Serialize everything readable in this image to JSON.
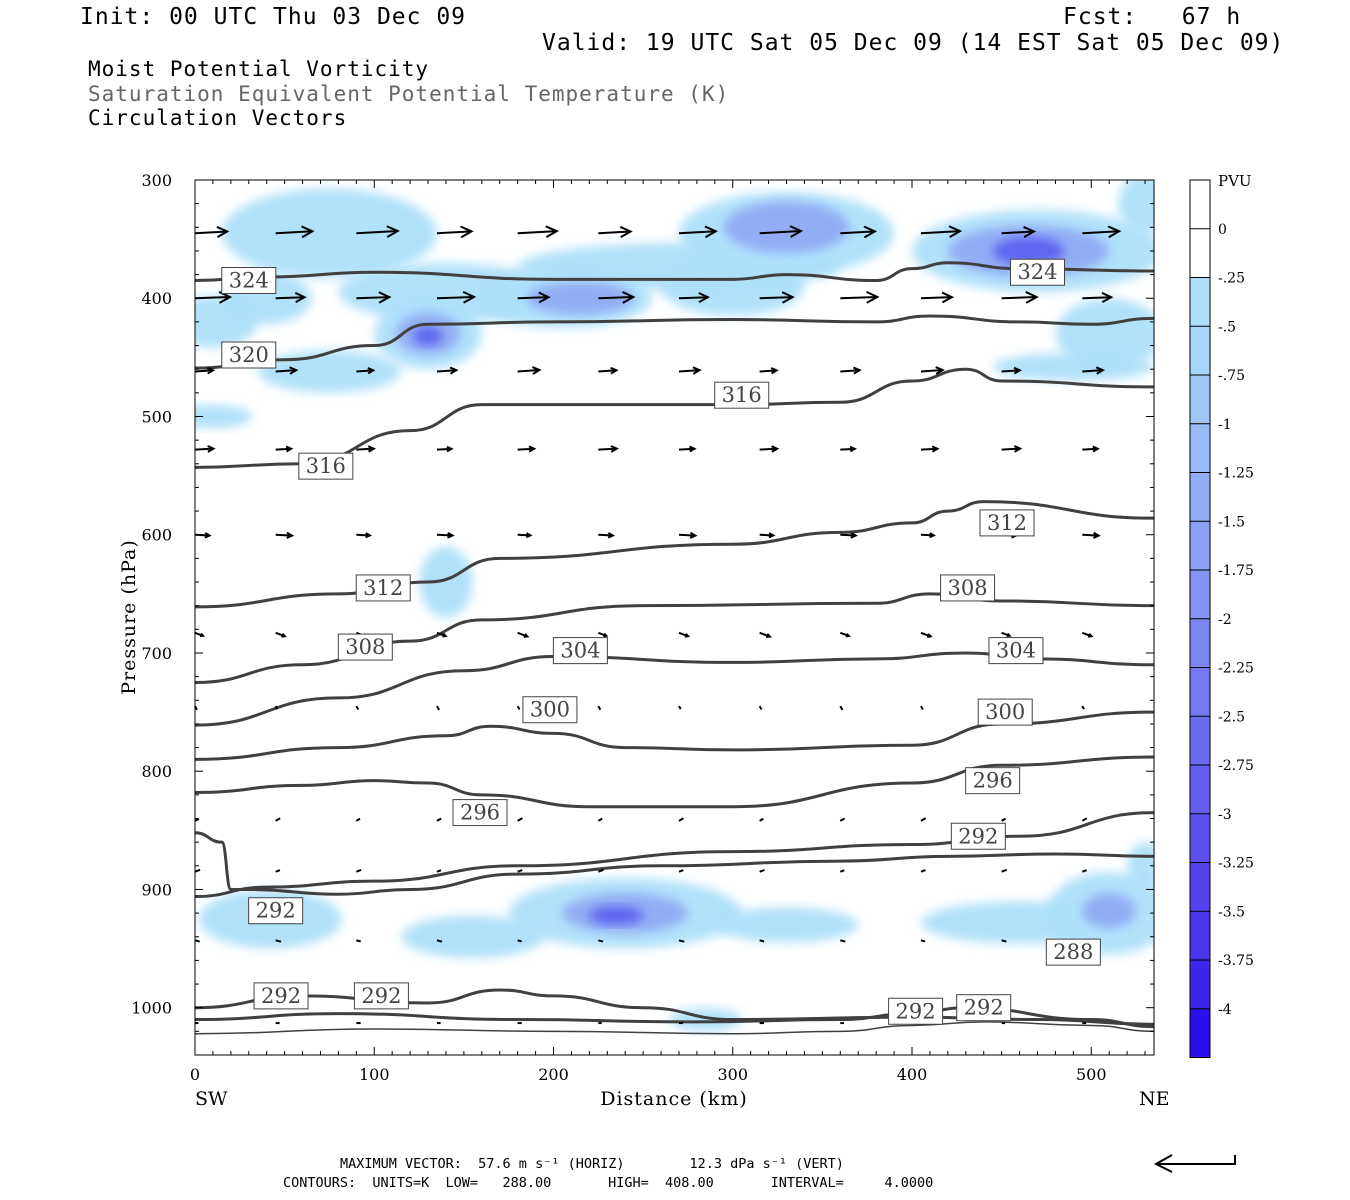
{
  "header": {
    "init": "Init: 00 UTC Thu 03 Dec 09",
    "fcst": "Fcst:   67 h",
    "valid": "Valid: 19 UTC Sat 05 Dec 09 (14 EST Sat 05 Dec 09)",
    "line1": "Moist Potential Vorticity",
    "line2": "Saturation Equivalent Potential Temperature (K)",
    "line3": "Circulation Vectors"
  },
  "footer": {
    "max_vector": "MAXIMUM VECTOR:  57.6 m s⁻¹ (HORIZ)        12.3 dPa s⁻¹ (VERT)",
    "contours": "CONTOURS:  UNITS=K  LOW=   288.00       HIGH=  408.00       INTERVAL=     4.0000"
  },
  "colors": {
    "fill_light": "#aee0fa",
    "fill_mid": "#8fa8f5",
    "fill_dark": "#5a5ef0",
    "contour": "#404040"
  },
  "chart_data": {
    "type": "contour",
    "xlabel": "Distance (km)",
    "ylabel": "Pressure (hPa)",
    "x_end_labels": {
      "left": "SW",
      "right": "NE"
    },
    "xlim": [
      0,
      535
    ],
    "ylim": [
      300,
      1040
    ],
    "x_ticks": [
      0,
      100,
      200,
      300,
      400,
      500
    ],
    "y_ticks": [
      300,
      400,
      500,
      600,
      700,
      800,
      900,
      1000
    ],
    "colorbar": {
      "title": "PVU",
      "labels": [
        "0",
        "-.25",
        "-.5",
        "-.75",
        "-1",
        "-1.25",
        "-1.5",
        "-1.75",
        "-2",
        "-2.25",
        "-2.5",
        "-2.75",
        "-3",
        "-3.25",
        "-3.5",
        "-3.75",
        "-4"
      ],
      "colors": [
        "#ffffff",
        "#ffffff",
        "#aee0fa",
        "#a6d6fa",
        "#9fc8f8",
        "#98bcf7",
        "#91aef6",
        "#8aa1f5",
        "#8394f4",
        "#7c87f3",
        "#7479f2",
        "#6d6cf1",
        "#655ef0",
        "#5d50ef",
        "#5542ee",
        "#4c34ed",
        "#3f24ec",
        "#2a10eb"
      ]
    },
    "contours": [
      {
        "label": "324",
        "points": [
          [
            0,
            385
          ],
          [
            40,
            382
          ],
          [
            100,
            378
          ],
          [
            200,
            384
          ],
          [
            300,
            384
          ],
          [
            330,
            380
          ],
          [
            380,
            385
          ],
          [
            400,
            375
          ],
          [
            420,
            370
          ],
          [
            460,
            375
          ],
          [
            535,
            377
          ]
        ]
      },
      {
        "label": "320",
        "points": [
          [
            0,
            459
          ],
          [
            50,
            452
          ],
          [
            100,
            440
          ],
          [
            130,
            422
          ],
          [
            200,
            420
          ],
          [
            300,
            418
          ],
          [
            380,
            420
          ],
          [
            410,
            415
          ],
          [
            460,
            420
          ],
          [
            500,
            422
          ],
          [
            535,
            417
          ]
        ]
      },
      {
        "label": "316",
        "points": [
          [
            0,
            543
          ],
          [
            60,
            540
          ],
          [
            120,
            512
          ],
          [
            160,
            490
          ],
          [
            200,
            490
          ],
          [
            300,
            490
          ],
          [
            360,
            488
          ],
          [
            400,
            470
          ],
          [
            430,
            460
          ],
          [
            450,
            470
          ],
          [
            535,
            475
          ]
        ]
      },
      {
        "label": "312",
        "points": [
          [
            0,
            661
          ],
          [
            80,
            650
          ],
          [
            130,
            640
          ],
          [
            170,
            620
          ],
          [
            300,
            608
          ],
          [
            360,
            598
          ],
          [
            400,
            590
          ],
          [
            420,
            580
          ],
          [
            440,
            572
          ],
          [
            535,
            586
          ]
        ]
      },
      {
        "label": "308",
        "points": [
          [
            0,
            725
          ],
          [
            60,
            710
          ],
          [
            120,
            690
          ],
          [
            160,
            672
          ],
          [
            250,
            660
          ],
          [
            380,
            658
          ],
          [
            410,
            650
          ],
          [
            450,
            656
          ],
          [
            535,
            660
          ]
        ]
      },
      {
        "label": "304",
        "points": [
          [
            0,
            761
          ],
          [
            80,
            738
          ],
          [
            150,
            715
          ],
          [
            200,
            703
          ],
          [
            300,
            708
          ],
          [
            380,
            705
          ],
          [
            430,
            700
          ],
          [
            470,
            705
          ],
          [
            535,
            710
          ]
        ]
      },
      {
        "label": "300",
        "points": [
          [
            0,
            790
          ],
          [
            80,
            780
          ],
          [
            140,
            770
          ],
          [
            165,
            762
          ],
          [
            200,
            768
          ],
          [
            240,
            780
          ],
          [
            300,
            782
          ],
          [
            400,
            778
          ],
          [
            450,
            760
          ],
          [
            535,
            750
          ]
        ]
      },
      {
        "label": "296",
        "points": [
          [
            0,
            818
          ],
          [
            60,
            812
          ],
          [
            100,
            808
          ],
          [
            130,
            810
          ],
          [
            160,
            820
          ],
          [
            220,
            830
          ],
          [
            300,
            830
          ],
          [
            400,
            810
          ],
          [
            450,
            795
          ],
          [
            535,
            788
          ]
        ]
      },
      {
        "label": "292",
        "points": [
          [
            0,
            906
          ],
          [
            40,
            898
          ],
          [
            100,
            893
          ],
          [
            180,
            880
          ],
          [
            300,
            868
          ],
          [
            400,
            862
          ],
          [
            460,
            855
          ],
          [
            535,
            835
          ]
        ]
      },
      {
        "label": "288",
        "points": [
          [
            0,
            852
          ],
          [
            15,
            860
          ],
          [
            20,
            900
          ],
          [
            30,
            900
          ],
          [
            80,
            904
          ],
          [
            120,
            900
          ],
          [
            180,
            887
          ],
          [
            260,
            880
          ],
          [
            360,
            876
          ],
          [
            420,
            872
          ],
          [
            480,
            870
          ],
          [
            535,
            872
          ]
        ]
      },
      {
        "label": "292",
        "points": [
          [
            0,
            1000
          ],
          [
            60,
            990
          ],
          [
            130,
            996
          ],
          [
            170,
            985
          ],
          [
            200,
            990
          ],
          [
            250,
            1000
          ],
          [
            300,
            1010
          ],
          [
            400,
            1008
          ],
          [
            470,
            1010
          ],
          [
            535,
            1014
          ]
        ]
      },
      {
        "label": "292",
        "points": [
          [
            0,
            1010
          ],
          [
            80,
            1005
          ],
          [
            180,
            1010
          ],
          [
            280,
            1012
          ],
          [
            360,
            1010
          ],
          [
            400,
            1005
          ],
          [
            430,
            1000
          ],
          [
            500,
            1010
          ],
          [
            535,
            1016
          ]
        ]
      },
      {
        "label": "",
        "points": [
          [
            0,
            1022
          ],
          [
            100,
            1018
          ],
          [
            200,
            1020
          ],
          [
            300,
            1022
          ],
          [
            360,
            1020
          ],
          [
            400,
            1015
          ],
          [
            440,
            1012
          ],
          [
            500,
            1015
          ],
          [
            535,
            1020
          ]
        ]
      }
    ],
    "contour_labels": [
      {
        "text": "324",
        "x": 30,
        "p": 385
      },
      {
        "text": "324",
        "x": 470,
        "p": 378
      },
      {
        "text": "320",
        "x": 30,
        "p": 448
      },
      {
        "text": "316",
        "x": 305,
        "p": 482
      },
      {
        "text": "316",
        "x": 73,
        "p": 542
      },
      {
        "text": "312",
        "x": 453,
        "p": 590
      },
      {
        "text": "312",
        "x": 105,
        "p": 645
      },
      {
        "text": "308",
        "x": 431,
        "p": 645
      },
      {
        "text": "308",
        "x": 95,
        "p": 695
      },
      {
        "text": "304",
        "x": 215,
        "p": 698
      },
      {
        "text": "304",
        "x": 458,
        "p": 698
      },
      {
        "text": "300",
        "x": 198,
        "p": 748
      },
      {
        "text": "300",
        "x": 452,
        "p": 750
      },
      {
        "text": "296",
        "x": 445,
        "p": 808
      },
      {
        "text": "296",
        "x": 159,
        "p": 835
      },
      {
        "text": "292",
        "x": 437,
        "p": 855
      },
      {
        "text": "292",
        "x": 45,
        "p": 918
      },
      {
        "text": "288",
        "x": 490,
        "p": 953
      },
      {
        "text": "292",
        "x": 48,
        "p": 990
      },
      {
        "text": "292",
        "x": 104,
        "p": 990
      },
      {
        "text": "292",
        "x": 402,
        "p": 1003
      },
      {
        "text": "292",
        "x": 440,
        "p": 1000
      }
    ],
    "pv_regions": [
      {
        "level": 1,
        "x": 10,
        "p": 420,
        "rx": 25,
        "rp": 22
      },
      {
        "level": 1,
        "x": 40,
        "p": 400,
        "rx": 25,
        "rp": 22
      },
      {
        "level": 1,
        "x": 75,
        "p": 462,
        "rx": 40,
        "rp": 18
      },
      {
        "level": 1,
        "x": 10,
        "p": 500,
        "rx": 22,
        "rp": 10
      },
      {
        "level": 1,
        "x": 75,
        "p": 345,
        "rx": 60,
        "rp": 38
      },
      {
        "level": 1,
        "x": 140,
        "p": 395,
        "rx": 60,
        "rp": 25
      },
      {
        "level": 1,
        "x": 130,
        "p": 430,
        "rx": 30,
        "rp": 30
      },
      {
        "level": 1,
        "x": 205,
        "p": 400,
        "rx": 50,
        "rp": 25
      },
      {
        "level": 1,
        "x": 270,
        "p": 373,
        "rx": 90,
        "rp": 20
      },
      {
        "level": 1,
        "x": 330,
        "p": 345,
        "rx": 60,
        "rp": 35
      },
      {
        "level": 1,
        "x": 300,
        "p": 390,
        "rx": 40,
        "rp": 25
      },
      {
        "level": 1,
        "x": 470,
        "p": 360,
        "rx": 70,
        "rp": 35
      },
      {
        "level": 1,
        "x": 510,
        "p": 430,
        "rx": 30,
        "rp": 30
      },
      {
        "level": 1,
        "x": 490,
        "p": 458,
        "rx": 45,
        "rp": 12
      },
      {
        "level": 1,
        "x": 530,
        "p": 320,
        "rx": 15,
        "rp": 25
      },
      {
        "level": 1,
        "x": 140,
        "p": 640,
        "rx": 15,
        "rp": 30
      },
      {
        "level": 1,
        "x": 240,
        "p": 920,
        "rx": 65,
        "rp": 30
      },
      {
        "level": 1,
        "x": 42,
        "p": 925,
        "rx": 40,
        "rp": 25
      },
      {
        "level": 1,
        "x": 155,
        "p": 940,
        "rx": 40,
        "rp": 18
      },
      {
        "level": 1,
        "x": 510,
        "p": 920,
        "rx": 35,
        "rp": 35
      },
      {
        "level": 1,
        "x": 530,
        "p": 880,
        "rx": 10,
        "rp": 20
      },
      {
        "level": 1,
        "x": 330,
        "p": 930,
        "rx": 40,
        "rp": 15
      },
      {
        "level": 1,
        "x": 460,
        "p": 928,
        "rx": 55,
        "rp": 18
      },
      {
        "level": 1,
        "x": 285,
        "p": 1010,
        "rx": 20,
        "rp": 10
      },
      {
        "level": 2,
        "x": 130,
        "p": 430,
        "rx": 18,
        "rp": 18
      },
      {
        "level": 2,
        "x": 215,
        "p": 400,
        "rx": 30,
        "rp": 14
      },
      {
        "level": 2,
        "x": 330,
        "p": 340,
        "rx": 35,
        "rp": 22
      },
      {
        "level": 2,
        "x": 465,
        "p": 360,
        "rx": 45,
        "rp": 22
      },
      {
        "level": 2,
        "x": 240,
        "p": 920,
        "rx": 35,
        "rp": 17
      },
      {
        "level": 2,
        "x": 510,
        "p": 918,
        "rx": 15,
        "rp": 15
      },
      {
        "level": 3,
        "x": 130,
        "p": 432,
        "rx": 8,
        "rp": 8
      },
      {
        "level": 3,
        "x": 465,
        "p": 360,
        "rx": 20,
        "rp": 12
      },
      {
        "level": 3,
        "x": 235,
        "p": 922,
        "rx": 15,
        "rp": 8
      }
    ],
    "vector_rows": [
      {
        "p": 345,
        "len": 38,
        "dir": -3
      },
      {
        "p": 400,
        "len": 34,
        "dir": -2
      },
      {
        "p": 462,
        "len": 20,
        "dir": -4
      },
      {
        "p": 528,
        "len": 17,
        "dir": -3
      },
      {
        "p": 600,
        "len": 15,
        "dir": 3
      },
      {
        "p": 683,
        "len": 10,
        "dir": 20
      },
      {
        "p": 745,
        "len": 4,
        "dir": 60
      },
      {
        "p": 842,
        "len": 5,
        "dir": -30
      },
      {
        "p": 885,
        "len": 5,
        "dir": -20
      },
      {
        "p": 943,
        "len": 5,
        "dir": 15
      },
      {
        "p": 1013,
        "len": 4,
        "dir": 0
      }
    ],
    "vector_x": [
      0,
      45,
      90,
      135,
      180,
      225,
      270,
      315,
      360,
      405,
      450,
      495
    ],
    "legend_arrow": "reference vector"
  }
}
